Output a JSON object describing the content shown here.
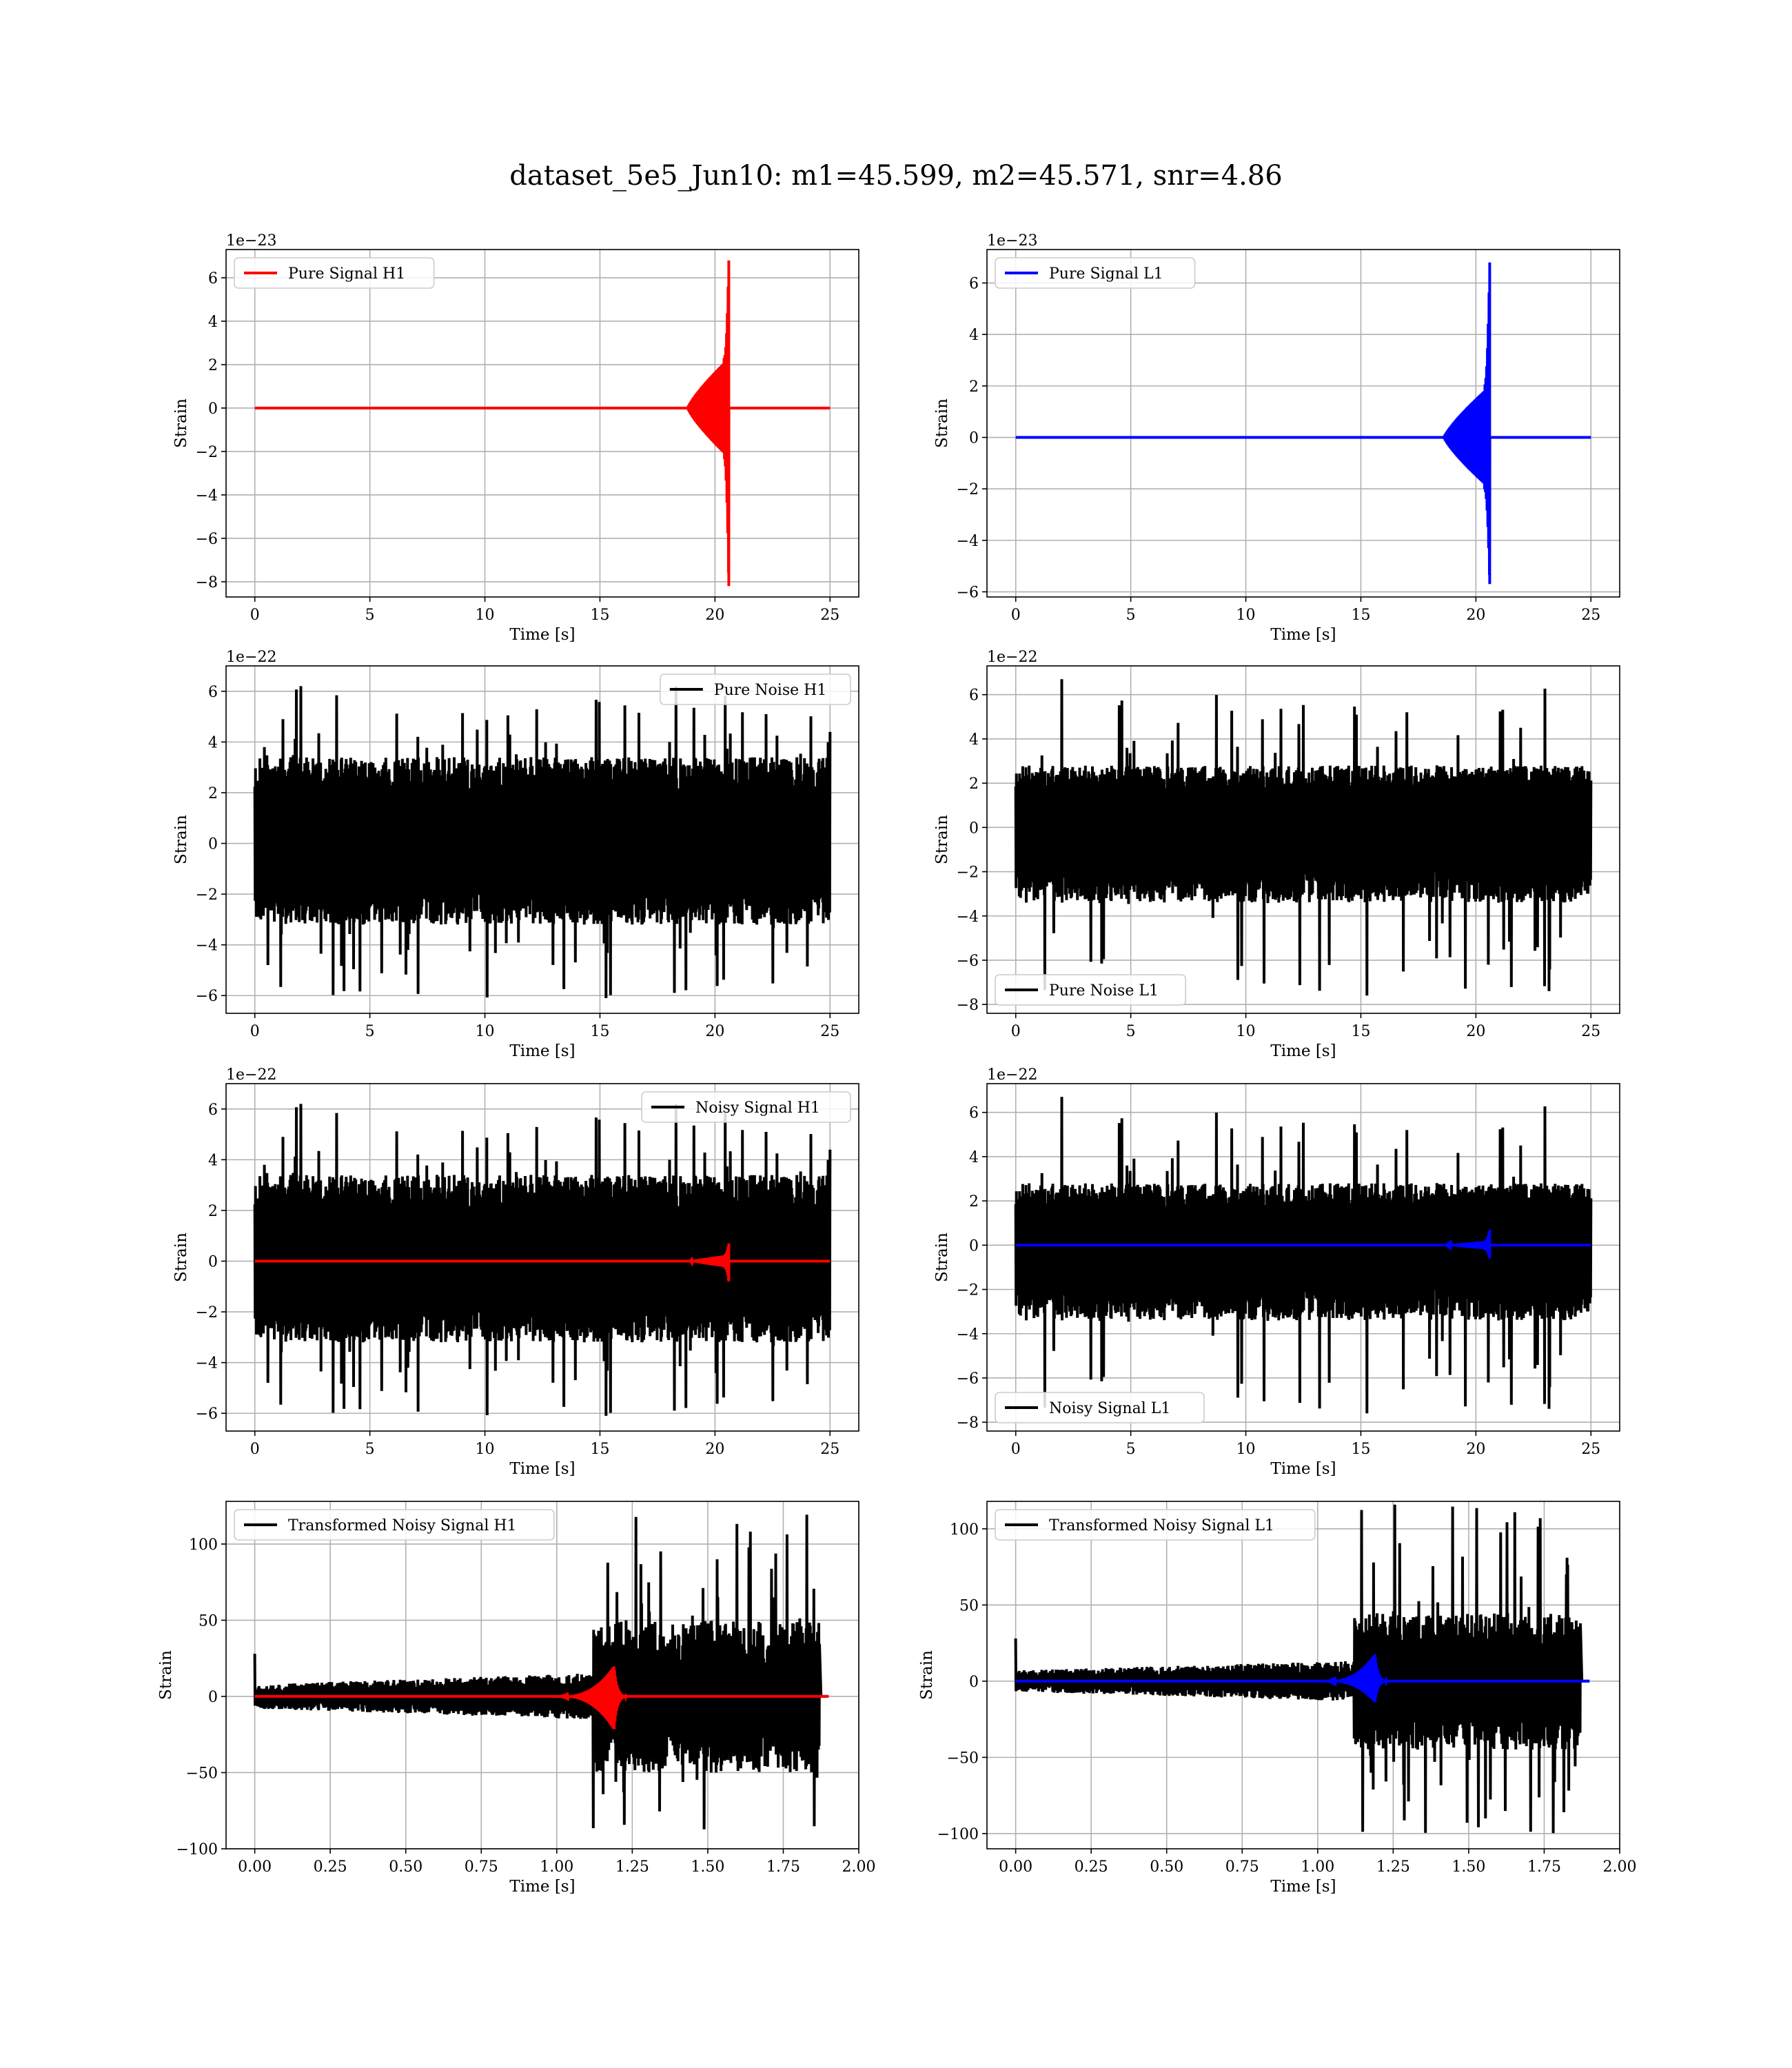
{
  "figure": {
    "title": "dataset_5e5_Jun10: m1=45.599, m2=45.571, snr=4.86",
    "colors": {
      "h1_signal": "#ff0000",
      "l1_signal": "#0000ff",
      "noise": "#000000",
      "grid": "#b0b0b0",
      "frame": "#000000"
    }
  },
  "chart_data": [
    {
      "id": "pure-signal-h1",
      "type": "line",
      "xlabel": "Time [s]",
      "ylabel": "Strain",
      "offset_text": "1e−23",
      "xlim": [
        -1.25,
        26.25
      ],
      "ylim": [
        -8.7,
        7.3
      ],
      "xticks": [
        0,
        5,
        10,
        15,
        20,
        25
      ],
      "xtick_labels": [
        "0",
        "5",
        "10",
        "15",
        "20",
        "25"
      ],
      "yticks": [
        -8,
        -6,
        -4,
        -2,
        0,
        2,
        4,
        6
      ],
      "ytick_labels": [
        "−8",
        "−6",
        "−4",
        "−2",
        "0",
        "2",
        "4",
        "6"
      ],
      "legend": {
        "loc": "upper left"
      },
      "series": [
        {
          "name": "Pure Signal H1",
          "color": "#ff0000",
          "kind": "chirp",
          "x_range": [
            0,
            25
          ],
          "merger_time": 20.6,
          "onset_time": 18.8,
          "peak_amplitude": [
            6.8,
            -8.2
          ],
          "plateau_amplitude": 2.3
        }
      ]
    },
    {
      "id": "pure-signal-l1",
      "type": "line",
      "xlabel": "Time [s]",
      "ylabel": "Strain",
      "offset_text": "1e−23",
      "xlim": [
        -1.25,
        26.25
      ],
      "ylim": [
        -6.2,
        7.3
      ],
      "xticks": [
        0,
        5,
        10,
        15,
        20,
        25
      ],
      "xtick_labels": [
        "0",
        "5",
        "10",
        "15",
        "20",
        "25"
      ],
      "yticks": [
        -6,
        -4,
        -2,
        0,
        2,
        4,
        6
      ],
      "ytick_labels": [
        "−6",
        "−4",
        "−2",
        "0",
        "2",
        "4",
        "6"
      ],
      "legend": {
        "loc": "upper left"
      },
      "series": [
        {
          "name": "Pure Signal L1",
          "color": "#0000ff",
          "kind": "chirp",
          "x_range": [
            0,
            25
          ],
          "merger_time": 20.6,
          "onset_time": 18.6,
          "peak_amplitude": [
            6.8,
            -5.7
          ],
          "plateau_amplitude": 2.0
        }
      ]
    },
    {
      "id": "pure-noise-h1",
      "type": "line",
      "xlabel": "Time [s]",
      "ylabel": "Strain",
      "offset_text": "1e−22",
      "xlim": [
        -1.25,
        26.25
      ],
      "ylim": [
        -6.7,
        7.0
      ],
      "xticks": [
        0,
        5,
        10,
        15,
        20,
        25
      ],
      "xtick_labels": [
        "0",
        "5",
        "10",
        "15",
        "20",
        "25"
      ],
      "yticks": [
        -6,
        -4,
        -2,
        0,
        2,
        4,
        6
      ],
      "ytick_labels": [
        "−6",
        "−4",
        "−2",
        "0",
        "2",
        "4",
        "6"
      ],
      "legend": {
        "loc": "upper right"
      },
      "series": [
        {
          "name": "Pure Noise H1",
          "color": "#000000",
          "kind": "noise",
          "x_range": [
            0,
            25
          ],
          "band": [
            -3.2,
            3.4
          ],
          "extremes": [
            6.2,
            -6.1
          ],
          "seed": 11
        }
      ]
    },
    {
      "id": "pure-noise-l1",
      "type": "line",
      "xlabel": "Time [s]",
      "ylabel": "Strain",
      "offset_text": "1e−22",
      "xlim": [
        -1.25,
        26.25
      ],
      "ylim": [
        -8.4,
        7.3
      ],
      "xticks": [
        0,
        5,
        10,
        15,
        20,
        25
      ],
      "xtick_labels": [
        "0",
        "5",
        "10",
        "15",
        "20",
        "25"
      ],
      "yticks": [
        -8,
        -6,
        -4,
        -2,
        0,
        2,
        4,
        6
      ],
      "ytick_labels": [
        "−8",
        "−6",
        "−4",
        "−2",
        "0",
        "2",
        "4",
        "6"
      ],
      "legend": {
        "loc": "lower left"
      },
      "series": [
        {
          "name": "Pure Noise L1",
          "color": "#000000",
          "kind": "noise",
          "x_range": [
            0,
            25
          ],
          "band": [
            -3.4,
            2.8
          ],
          "extremes": [
            6.7,
            -7.6
          ],
          "seed": 23
        }
      ]
    },
    {
      "id": "noisy-signal-h1",
      "type": "line",
      "xlabel": "Time [s]",
      "ylabel": "Strain",
      "offset_text": "1e−22",
      "xlim": [
        -1.25,
        26.25
      ],
      "ylim": [
        -6.7,
        7.0
      ],
      "xticks": [
        0,
        5,
        10,
        15,
        20,
        25
      ],
      "xtick_labels": [
        "0",
        "5",
        "10",
        "15",
        "20",
        "25"
      ],
      "yticks": [
        -6,
        -4,
        -2,
        0,
        2,
        4,
        6
      ],
      "ytick_labels": [
        "−6",
        "−4",
        "−2",
        "0",
        "2",
        "4",
        "6"
      ],
      "legend": {
        "loc": "upper right"
      },
      "series": [
        {
          "name": "Noisy Signal H1",
          "color": "#000000",
          "kind": "noise",
          "x_range": [
            0,
            25
          ],
          "band": [
            -3.2,
            3.4
          ],
          "extremes": [
            6.2,
            -6.1
          ],
          "seed": 11
        },
        {
          "color": "#ff0000",
          "kind": "chirp",
          "x_range": [
            0,
            25
          ],
          "merger_time": 20.6,
          "onset_time": 18.9,
          "peak_amplitude": [
            0.7,
            -0.8
          ],
          "plateau_amplitude": 0.25
        }
      ]
    },
    {
      "id": "noisy-signal-l1",
      "type": "line",
      "xlabel": "Time [s]",
      "ylabel": "Strain",
      "offset_text": "1e−22",
      "xlim": [
        -1.25,
        26.25
      ],
      "ylim": [
        -8.4,
        7.3
      ],
      "xticks": [
        0,
        5,
        10,
        15,
        20,
        25
      ],
      "xtick_labels": [
        "0",
        "5",
        "10",
        "15",
        "20",
        "25"
      ],
      "yticks": [
        -8,
        -6,
        -4,
        -2,
        0,
        2,
        4,
        6
      ],
      "ytick_labels": [
        "−8",
        "−6",
        "−4",
        "−2",
        "0",
        "2",
        "4",
        "6"
      ],
      "legend": {
        "loc": "lower left"
      },
      "series": [
        {
          "name": "Noisy Signal L1",
          "color": "#000000",
          "kind": "noise",
          "x_range": [
            0,
            25
          ],
          "band": [
            -3.4,
            2.8
          ],
          "extremes": [
            6.7,
            -7.6
          ],
          "seed": 23
        },
        {
          "color": "#0000ff",
          "kind": "chirp",
          "x_range": [
            0,
            25
          ],
          "merger_time": 20.6,
          "onset_time": 18.7,
          "peak_amplitude": [
            0.7,
            -0.6
          ],
          "plateau_amplitude": 0.2
        }
      ]
    },
    {
      "id": "transformed-noisy-signal-h1",
      "type": "line",
      "xlabel": "Time [s]",
      "ylabel": "Strain",
      "offset_text": "",
      "xlim": [
        -0.095,
        2.0
      ],
      "ylim": [
        -100,
        128
      ],
      "xticks": [
        0,
        0.25,
        0.5,
        0.75,
        1.0,
        1.25,
        1.5,
        1.75,
        2.0
      ],
      "xtick_labels": [
        "0.00",
        "0.25",
        "0.50",
        "0.75",
        "1.00",
        "1.25",
        "1.50",
        "1.75",
        "2.00"
      ],
      "yticks": [
        -100,
        -50,
        0,
        50,
        100
      ],
      "ytick_labels": [
        "−100",
        "−50",
        "0",
        "50",
        "100"
      ],
      "legend": {
        "loc": "upper left"
      },
      "series": [
        {
          "name": "Transformed Noisy Signal H1",
          "color": "#000000",
          "kind": "whitened",
          "x_range": [
            0,
            1.9
          ],
          "jump_time": 1.12,
          "end_time": 1.87,
          "early_band": 8,
          "late_band": 50,
          "extremes": [
            120,
            -90
          ],
          "seed": 37
        },
        {
          "color": "#ff0000",
          "kind": "burst",
          "x_range": [
            0,
            1.9
          ],
          "merger_time": 1.19,
          "onset_time": 0.98,
          "peak_amplitude": [
            20,
            -22
          ]
        }
      ]
    },
    {
      "id": "transformed-noisy-signal-l1",
      "type": "line",
      "xlabel": "Time [s]",
      "ylabel": "Strain",
      "offset_text": "",
      "xlim": [
        -0.095,
        2.0
      ],
      "ylim": [
        -110,
        118
      ],
      "xticks": [
        0,
        0.25,
        0.5,
        0.75,
        1.0,
        1.25,
        1.5,
        1.75,
        2.0
      ],
      "xtick_labels": [
        "0.00",
        "0.25",
        "0.50",
        "0.75",
        "1.00",
        "1.25",
        "1.50",
        "1.75",
        "2.00"
      ],
      "yticks": [
        -100,
        -50,
        0,
        50,
        100
      ],
      "ytick_labels": [
        "−100",
        "−50",
        "0",
        "50",
        "100"
      ],
      "legend": {
        "loc": "upper left"
      },
      "series": [
        {
          "name": "Transformed Noisy Signal L1",
          "color": "#000000",
          "kind": "whitened",
          "x_range": [
            0,
            1.9
          ],
          "jump_time": 1.12,
          "end_time": 1.87,
          "early_band": 7,
          "late_band": 45,
          "extremes": [
            118,
            -100
          ],
          "seed": 51
        },
        {
          "color": "#0000ff",
          "kind": "burst",
          "x_range": [
            0,
            1.9
          ],
          "merger_time": 1.19,
          "onset_time": 1.0,
          "peak_amplitude": [
            18,
            -14
          ]
        }
      ]
    }
  ]
}
